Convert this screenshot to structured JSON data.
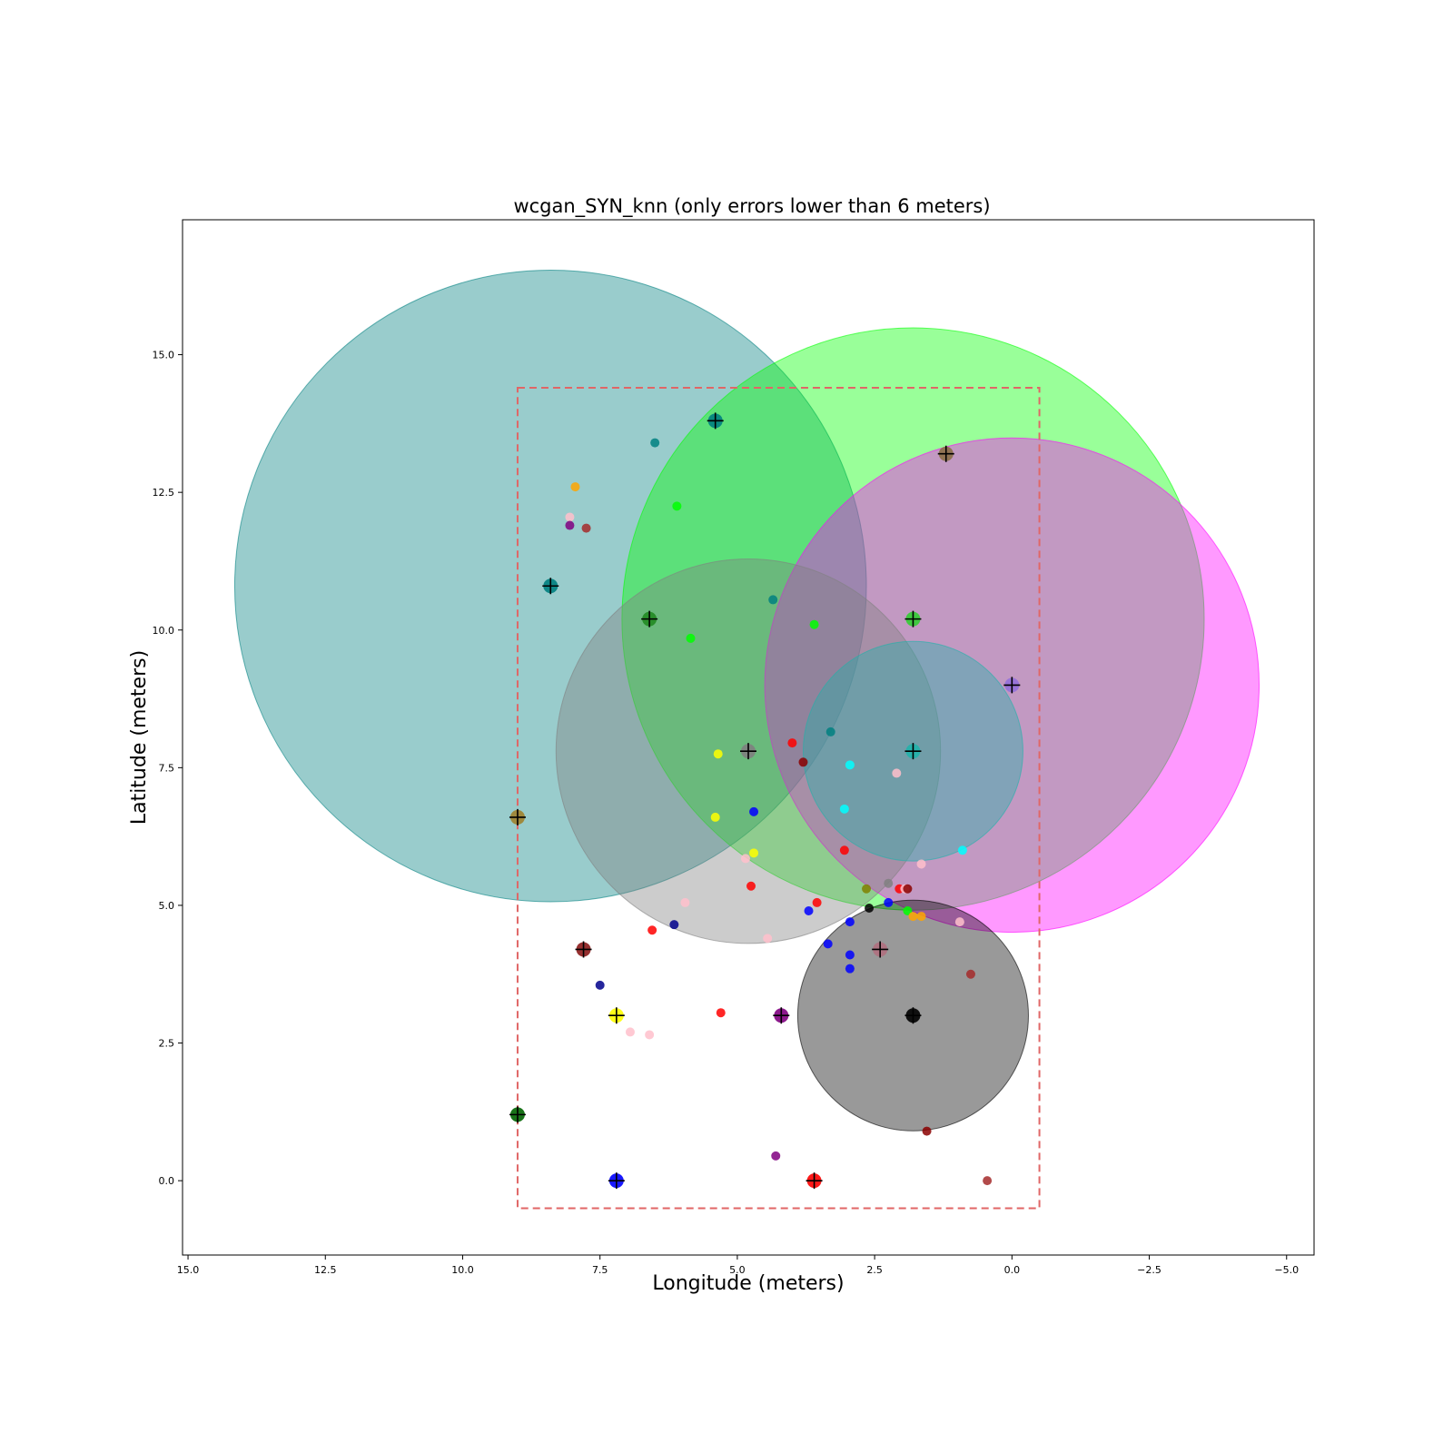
{
  "chart_data": {
    "type": "scatter",
    "title": "wcgan_SYN_knn (only errors lower than 6 meters)",
    "xlabel": "Longitude (meters)",
    "ylabel": "Latitude (meters)",
    "xlim": [
      15.1,
      -5.5
    ],
    "ylim": [
      -1.35,
      17.45
    ],
    "x_inverted": true,
    "grid": false,
    "x_ticks": [
      15.0,
      12.5,
      10.0,
      7.5,
      5.0,
      2.5,
      0.0,
      -2.5,
      -5.0
    ],
    "x_tick_labels": [
      "15.0",
      "12.5",
      "10.0",
      "7.5",
      "5.0",
      "2.5",
      "0.0",
      "−2.5",
      "−5.0"
    ],
    "y_ticks": [
      0.0,
      2.5,
      5.0,
      7.5,
      10.0,
      12.5,
      15.0
    ],
    "y_tick_labels": [
      "0.0",
      "2.5",
      "5.0",
      "7.5",
      "10.0",
      "12.5",
      "15.0"
    ],
    "bounding_box": {
      "x_min": -0.5,
      "x_max": 9.0,
      "y_min": -0.5,
      "y_max": 14.4,
      "color": "#e06666",
      "style": "dashed"
    },
    "error_circles": [
      {
        "cx": 8.4,
        "cy": 10.8,
        "r": 5.75,
        "color": "#008080",
        "opacity": 0.4
      },
      {
        "cx": 1.8,
        "cy": 10.2,
        "r": 5.3,
        "color": "#00ff00",
        "opacity": 0.4
      },
      {
        "cx": 0.0,
        "cy": 9.0,
        "r": 4.5,
        "color": "#ff00ff",
        "opacity": 0.4
      },
      {
        "cx": 4.8,
        "cy": 7.8,
        "r": 3.5,
        "color": "#808080",
        "opacity": 0.4
      },
      {
        "cx": 1.8,
        "cy": 7.8,
        "r": 2.0,
        "color": "#20b2aa",
        "opacity": 0.4
      },
      {
        "cx": 1.8,
        "cy": 3.0,
        "r": 2.1,
        "color": "#000000",
        "opacity": 0.4
      }
    ],
    "reference_points": [
      {
        "x": 5.4,
        "y": 13.8,
        "color": "#008080"
      },
      {
        "x": 1.2,
        "y": 13.2,
        "color": "#8b6f47"
      },
      {
        "x": 8.4,
        "y": 10.8,
        "color": "#008080"
      },
      {
        "x": 6.6,
        "y": 10.2,
        "color": "#228b22"
      },
      {
        "x": 1.8,
        "y": 10.2,
        "color": "#32cd32"
      },
      {
        "x": 0.0,
        "y": 9.0,
        "color": "#9370db"
      },
      {
        "x": 4.8,
        "y": 7.8,
        "color": "#808080"
      },
      {
        "x": 1.8,
        "y": 7.8,
        "color": "#20b2aa"
      },
      {
        "x": 9.0,
        "y": 6.6,
        "color": "#a0822d"
      },
      {
        "x": 7.8,
        "y": 4.2,
        "color": "#8b1a1a"
      },
      {
        "x": 2.4,
        "y": 4.2,
        "color": "#b07080"
      },
      {
        "x": 7.2,
        "y": 3.0,
        "color": "#ffff00"
      },
      {
        "x": 4.2,
        "y": 3.0,
        "color": "#800080"
      },
      {
        "x": 1.8,
        "y": 3.0,
        "color": "#000000"
      },
      {
        "x": 9.0,
        "y": 1.2,
        "color": "#006400"
      },
      {
        "x": 7.2,
        "y": 0.0,
        "color": "#0000ff"
      },
      {
        "x": 3.6,
        "y": 0.0,
        "color": "#ff0000"
      }
    ],
    "predicted_points": [
      {
        "x": 6.5,
        "y": 13.4,
        "color": "#008080"
      },
      {
        "x": 7.95,
        "y": 12.6,
        "color": "#ffa500"
      },
      {
        "x": 6.1,
        "y": 12.25,
        "color": "#00ff00"
      },
      {
        "x": 8.05,
        "y": 12.05,
        "color": "#ffc0cb"
      },
      {
        "x": 8.05,
        "y": 11.9,
        "color": "#800080"
      },
      {
        "x": 7.75,
        "y": 11.85,
        "color": "#a52a2a"
      },
      {
        "x": 4.35,
        "y": 10.55,
        "color": "#008080"
      },
      {
        "x": 3.6,
        "y": 10.1,
        "color": "#00ff00"
      },
      {
        "x": 5.85,
        "y": 9.85,
        "color": "#00ff00"
      },
      {
        "x": 3.3,
        "y": 8.15,
        "color": "#008080"
      },
      {
        "x": 4.0,
        "y": 7.95,
        "color": "#ff0000"
      },
      {
        "x": 5.35,
        "y": 7.75,
        "color": "#ffff00"
      },
      {
        "x": 3.8,
        "y": 7.6,
        "color": "#8b0000"
      },
      {
        "x": 2.95,
        "y": 7.55,
        "color": "#00ffff"
      },
      {
        "x": 2.1,
        "y": 7.4,
        "color": "#ffc0cb"
      },
      {
        "x": 3.05,
        "y": 6.75,
        "color": "#00ffff"
      },
      {
        "x": 4.7,
        "y": 6.7,
        "color": "#0000ff"
      },
      {
        "x": 5.4,
        "y": 6.6,
        "color": "#ffff00"
      },
      {
        "x": 3.05,
        "y": 6.0,
        "color": "#ff0000"
      },
      {
        "x": 0.9,
        "y": 6.0,
        "color": "#00ffff"
      },
      {
        "x": 4.7,
        "y": 5.95,
        "color": "#ffff00"
      },
      {
        "x": 4.85,
        "y": 5.85,
        "color": "#ffc0cb"
      },
      {
        "x": 1.65,
        "y": 5.75,
        "color": "#ffc0cb"
      },
      {
        "x": 2.25,
        "y": 5.4,
        "color": "#808080"
      },
      {
        "x": 4.75,
        "y": 5.35,
        "color": "#ff0000"
      },
      {
        "x": 2.65,
        "y": 5.3,
        "color": "#808000"
      },
      {
        "x": 2.05,
        "y": 5.3,
        "color": "#ff0000"
      },
      {
        "x": 1.95,
        "y": 5.3,
        "color": "#ffc0cb"
      },
      {
        "x": 1.9,
        "y": 5.3,
        "color": "#8b0000"
      },
      {
        "x": 3.55,
        "y": 5.05,
        "color": "#ff0000"
      },
      {
        "x": 5.95,
        "y": 5.05,
        "color": "#ffc0cb"
      },
      {
        "x": 2.25,
        "y": 5.05,
        "color": "#0000ff"
      },
      {
        "x": 2.6,
        "y": 4.95,
        "color": "#000000"
      },
      {
        "x": 1.9,
        "y": 4.9,
        "color": "#00ff00"
      },
      {
        "x": 3.7,
        "y": 4.9,
        "color": "#0000ff"
      },
      {
        "x": 1.8,
        "y": 4.8,
        "color": "#ffa500"
      },
      {
        "x": 1.65,
        "y": 4.8,
        "color": "#ffa500"
      },
      {
        "x": 2.95,
        "y": 4.7,
        "color": "#0000ff"
      },
      {
        "x": 0.95,
        "y": 4.7,
        "color": "#ffc0cb"
      },
      {
        "x": 6.15,
        "y": 4.65,
        "color": "#00008b"
      },
      {
        "x": 6.55,
        "y": 4.55,
        "color": "#ff0000"
      },
      {
        "x": 4.45,
        "y": 4.4,
        "color": "#ffc0cb"
      },
      {
        "x": 3.35,
        "y": 4.3,
        "color": "#0000ff"
      },
      {
        "x": 2.95,
        "y": 4.1,
        "color": "#0000ff"
      },
      {
        "x": 2.95,
        "y": 3.85,
        "color": "#0000ff"
      },
      {
        "x": 0.75,
        "y": 3.75,
        "color": "#a52a2a"
      },
      {
        "x": 7.5,
        "y": 3.55,
        "color": "#00008b"
      },
      {
        "x": 5.3,
        "y": 3.05,
        "color": "#ff0000"
      },
      {
        "x": 6.95,
        "y": 2.7,
        "color": "#ffc0cb"
      },
      {
        "x": 6.6,
        "y": 2.65,
        "color": "#ffc0cb"
      },
      {
        "x": 1.55,
        "y": 0.9,
        "color": "#8b0000"
      },
      {
        "x": 4.3,
        "y": 0.45,
        "color": "#800080"
      },
      {
        "x": 0.45,
        "y": 0.0,
        "color": "#a52a2a"
      }
    ]
  }
}
